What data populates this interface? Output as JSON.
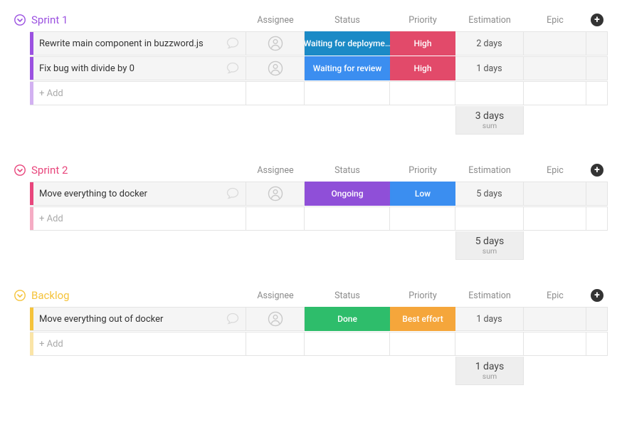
{
  "columns": {
    "assignee": "Assignee",
    "status": "Status",
    "priority": "Priority",
    "estimation": "Estimation",
    "epic": "Epic"
  },
  "add_row_label": "+ Add",
  "sum_label": "sum",
  "groups": [
    {
      "title": "Sprint 1",
      "accent": "#9b51e0",
      "rows": [
        {
          "title": "Rewrite main component in buzzword.js",
          "status": {
            "label": "Waiting for deployme…",
            "bg": "#1b8ac6"
          },
          "priority": {
            "label": "High",
            "bg": "#e24a6a"
          },
          "estimation": "2 days",
          "bar": "#9b51e0"
        },
        {
          "title": "Fix bug with divide by 0",
          "status": {
            "label": "Waiting for review",
            "bg": "#3b8ef0"
          },
          "priority": {
            "label": "High",
            "bg": "#e24a6a"
          },
          "estimation": "1 days",
          "bar": "#9b51e0"
        }
      ],
      "sum": "3 days"
    },
    {
      "title": "Sprint 2",
      "accent": "#e8467c",
      "rows": [
        {
          "title": "Move everything to docker",
          "status": {
            "label": "Ongoing",
            "bg": "#8f4fd8"
          },
          "priority": {
            "label": "Low",
            "bg": "#3b8ef0"
          },
          "estimation": "5 days",
          "bar": "#e8467c"
        }
      ],
      "sum": "5 days"
    },
    {
      "title": "Backlog",
      "accent": "#f5c33b",
      "rows": [
        {
          "title": "Move everything out of docker",
          "status": {
            "label": "Done",
            "bg": "#2ebd6b"
          },
          "priority": {
            "label": "Best effort",
            "bg": "#f5a63b"
          },
          "estimation": "1 days",
          "bar": "#f5c33b"
        }
      ],
      "sum": "1 days"
    }
  ]
}
